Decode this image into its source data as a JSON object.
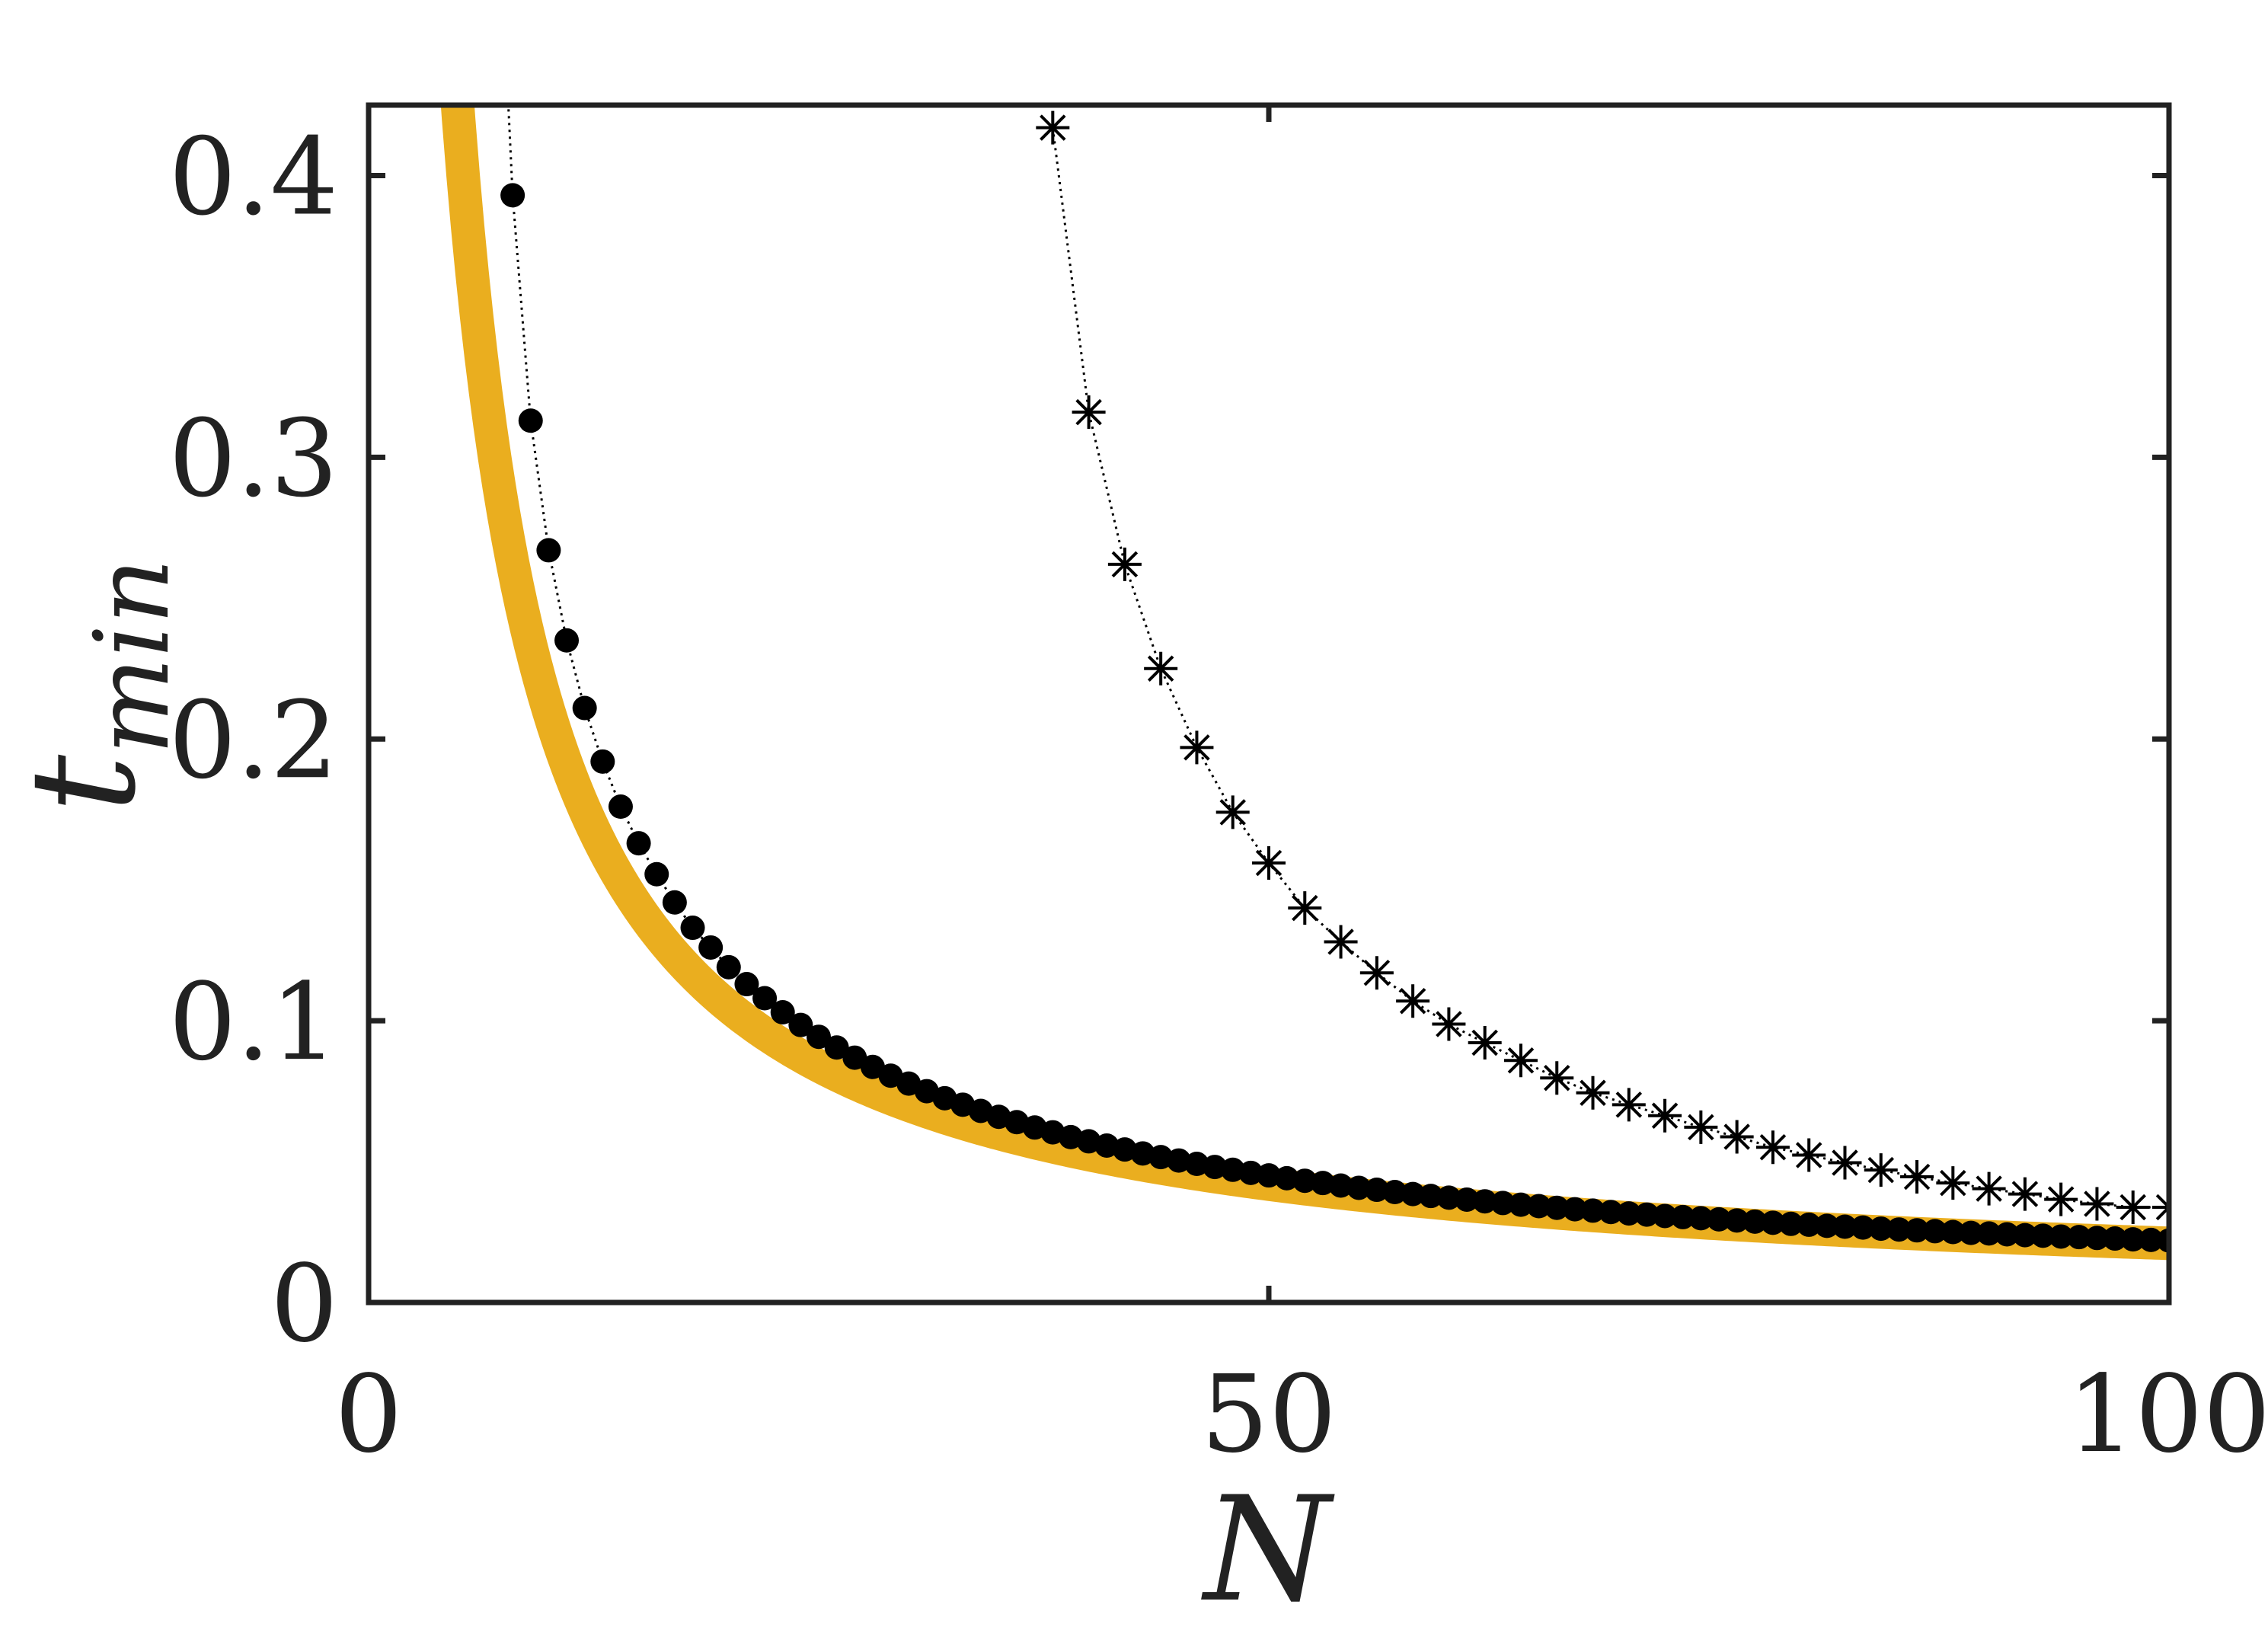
{
  "chart_data": {
    "type": "scatter",
    "xlabel": "N",
    "ylabel": "t",
    "ylabel_subscript": "min",
    "xlim": [
      0,
      100
    ],
    "ylim": [
      0,
      0.425
    ],
    "xticks": [
      "0",
      "50",
      "100"
    ],
    "yticks": [
      "0",
      "0.1",
      "0.2",
      "0.3",
      "0.4"
    ],
    "grid": false,
    "legend": "none",
    "colors": {
      "band": "#EAAE1F",
      "markers": "#000000",
      "axes": "#222222"
    },
    "series": [
      {
        "style": "thick-band",
        "curve": "t = 2.1 / N",
        "x": [
          4.5,
          5,
          6,
          7,
          8,
          10,
          12,
          15,
          20,
          25,
          30,
          40,
          50,
          60,
          70,
          80,
          90,
          100
        ],
        "y": [
          0.467,
          0.42,
          0.35,
          0.3,
          0.2625,
          0.21,
          0.175,
          0.14,
          0.105,
          0.084,
          0.07,
          0.0525,
          0.042,
          0.035,
          0.03,
          0.02625,
          0.02333,
          0.021
        ]
      },
      {
        "style": "dots-dotted-line",
        "x": [
          8,
          9,
          10,
          11,
          12,
          13,
          14,
          15,
          16,
          17,
          18,
          19,
          20,
          21,
          22,
          23,
          24,
          25,
          26,
          27,
          28,
          29,
          30,
          31,
          32,
          33,
          34,
          35,
          36,
          37,
          38,
          39,
          40,
          41,
          42,
          43,
          44,
          45,
          46,
          47,
          48,
          49,
          50,
          51,
          52,
          53,
          54,
          55,
          56,
          57,
          58,
          59,
          60,
          61,
          62,
          63,
          64,
          65,
          66,
          67,
          68,
          69,
          70,
          71,
          72,
          73,
          74,
          75,
          76,
          77,
          78,
          79,
          80,
          81,
          82,
          83,
          84,
          85,
          86,
          87,
          88,
          89,
          90,
          91,
          92,
          93,
          94,
          95,
          96,
          97,
          98,
          99,
          100
        ],
        "y": [
          0.393,
          0.313,
          0.267,
          0.235,
          0.211,
          0.192,
          0.176,
          0.163,
          0.152,
          0.142,
          0.133,
          0.126,
          0.119,
          0.113,
          0.108,
          0.103,
          0.0985,
          0.0943,
          0.0905,
          0.0869,
          0.0836,
          0.0805,
          0.0777,
          0.075,
          0.0725,
          0.0702,
          0.068,
          0.0659,
          0.064,
          0.0621,
          0.0604,
          0.0587,
          0.0572,
          0.0557,
          0.0543,
          0.0529,
          0.0516,
          0.0504,
          0.0492,
          0.0481,
          0.0471,
          0.046,
          0.0451,
          0.0441,
          0.0432,
          0.0424,
          0.0415,
          0.0407,
          0.04,
          0.0392,
          0.0385,
          0.0378,
          0.0372,
          0.0365,
          0.0359,
          0.0353,
          0.0347,
          0.0342,
          0.0336,
          0.0331,
          0.0326,
          0.0321,
          0.0316,
          0.0312,
          0.0307,
          0.0303,
          0.0299,
          0.0295,
          0.0291,
          0.0287,
          0.0283,
          0.0279,
          0.0276,
          0.0272,
          0.0269,
          0.0266,
          0.0262,
          0.0259,
          0.0256,
          0.0253,
          0.025,
          0.0247,
          0.0245,
          0.0242,
          0.0239,
          0.0237,
          0.0234,
          0.0232,
          0.0229,
          0.0227,
          0.0224,
          0.0222,
          0.022
        ]
      },
      {
        "style": "stars-dotted-line",
        "x": [
          38,
          40,
          42,
          44,
          46,
          48,
          50,
          52,
          54,
          56,
          58,
          60,
          62,
          64,
          66,
          68,
          70,
          72,
          74,
          76,
          78,
          80,
          82,
          84,
          86,
          88,
          90,
          92,
          94,
          96,
          98,
          100
        ],
        "y": [
          0.417,
          0.316,
          0.262,
          0.225,
          0.197,
          0.174,
          0.156,
          0.14,
          0.128,
          0.117,
          0.107,
          0.0988,
          0.0922,
          0.0859,
          0.0797,
          0.0744,
          0.0702,
          0.0663,
          0.0622,
          0.0588,
          0.0551,
          0.0523,
          0.0496,
          0.047,
          0.0446,
          0.0424,
          0.0404,
          0.0385,
          0.0366,
          0.035,
          0.0338,
          0.0338
        ]
      }
    ]
  }
}
